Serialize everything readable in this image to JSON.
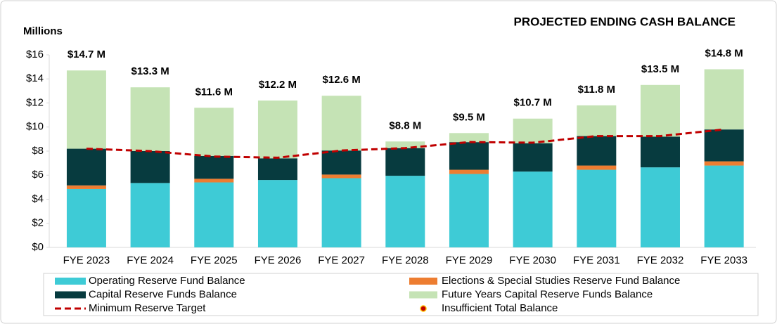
{
  "chart_data": {
    "type": "stacked_bar",
    "title": "PROJECTED ENDING CASH BALANCE",
    "y_label": "Millions",
    "categories": [
      "FYE 2023",
      "FYE 2024",
      "FYE 2025",
      "FYE 2026",
      "FYE 2027",
      "FYE 2028",
      "FYE 2029",
      "FYE 2030",
      "FYE 2031",
      "FYE 2032",
      "FYE 2033"
    ],
    "series": [
      {
        "name": "Operating Reserve Fund Balance",
        "color": "#3ecbd6",
        "kind": "bar",
        "values": [
          4.85,
          5.35,
          5.4,
          5.6,
          5.75,
          5.95,
          6.1,
          6.3,
          6.45,
          6.65,
          6.8
        ]
      },
      {
        "name": "Elections & Special Studies Reserve Fund Balance",
        "color": "#ed7d31",
        "kind": "bar",
        "values": [
          0.3,
          0,
          0.3,
          0,
          0.3,
          0,
          0.35,
          0,
          0.35,
          0,
          0.35
        ]
      },
      {
        "name": "Capital Reserve Funds Balance",
        "color": "#073b3f",
        "kind": "bar",
        "values": [
          3.05,
          2.65,
          1.9,
          1.8,
          2.0,
          2.3,
          2.3,
          2.35,
          2.45,
          2.55,
          2.65
        ]
      },
      {
        "name": "Future Years Capital Reserve Funds Balance",
        "color": "#c5e3b5",
        "kind": "bar",
        "values": [
          6.5,
          5.3,
          4.0,
          4.8,
          4.55,
          0.55,
          0.75,
          2.05,
          2.55,
          4.3,
          5.0
        ]
      },
      {
        "name": "Minimum Reserve Target",
        "color": "#c00000",
        "kind": "line",
        "values": [
          8.2,
          8.0,
          7.55,
          7.45,
          8.05,
          8.25,
          8.75,
          8.7,
          9.25,
          9.25,
          9.8
        ]
      },
      {
        "name": "Insufficient Total Balance",
        "color": "#c00000",
        "kind": "dot",
        "values": [
          null,
          null,
          null,
          null,
          null,
          null,
          null,
          null,
          null,
          null,
          null
        ]
      }
    ],
    "totals": {
      "values": [
        14.7,
        13.3,
        11.6,
        12.2,
        12.6,
        8.8,
        9.5,
        10.7,
        11.8,
        13.5,
        14.8
      ],
      "value_labels": [
        "$14.7 M",
        "$13.3 M",
        "$11.6 M",
        "$12.2 M",
        "$12.6 M",
        "$8.8 M",
        "$9.5 M",
        "$10.7 M",
        "$11.8 M",
        "$13.5 M",
        "$14.8 M"
      ]
    },
    "ylim": [
      0,
      16
    ],
    "yticks": [
      {
        "value": 0,
        "label": "$0"
      },
      {
        "value": 2,
        "label": "$2"
      },
      {
        "value": 4,
        "label": "$4"
      },
      {
        "value": 6,
        "label": "$6"
      },
      {
        "value": 8,
        "label": "$8"
      },
      {
        "value": 10,
        "label": "$10"
      },
      {
        "value": 12,
        "label": "$12"
      },
      {
        "value": 14,
        "label": "$14"
      },
      {
        "value": 16,
        "label": "$16"
      }
    ],
    "grid": false
  }
}
